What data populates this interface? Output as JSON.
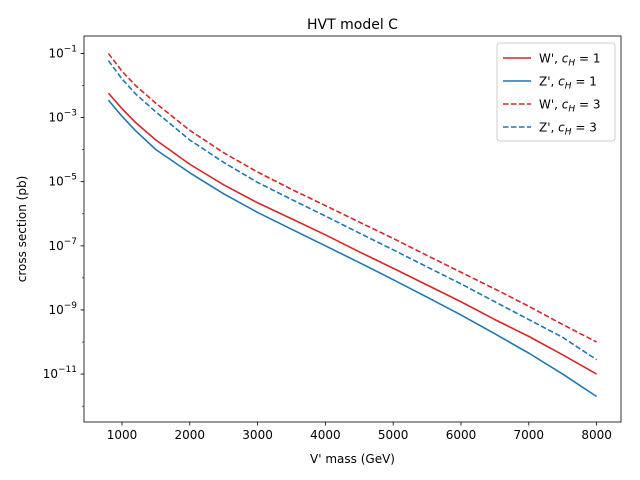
{
  "chart_data": {
    "type": "line",
    "title": "HVT model C",
    "xlabel": "V' mass (GeV)",
    "ylabel": "cross section (pb)",
    "xlim": [
      440,
      8360
    ],
    "ylim": [
      3.2e-13,
      0.35
    ],
    "yscale": "log",
    "grid": false,
    "legend_position": "top-right",
    "x_ticks": [
      1000,
      2000,
      3000,
      4000,
      5000,
      6000,
      7000,
      8000
    ],
    "x_tick_labels": [
      "1000",
      "2000",
      "3000",
      "4000",
      "5000",
      "6000",
      "7000",
      "8000"
    ],
    "y_ticks": [
      1e-11,
      1e-09,
      1e-07,
      1e-05,
      0.001,
      0.1
    ],
    "y_tick_exponents": [
      "−11",
      "−9",
      "−7",
      "−5",
      "−3",
      "−1"
    ],
    "y_tick_base": "10",
    "series": [
      {
        "name": "W', c_H = 1",
        "legend_prefix": "W', ",
        "legend_var": "c",
        "legend_sub": "H",
        "legend_eq": " = 1",
        "color": "#d62728",
        "dash": "solid",
        "x": [
          800,
          1000,
          1200,
          1500,
          2000,
          2500,
          3000,
          3500,
          4000,
          4500,
          5000,
          5500,
          6000,
          6500,
          7000,
          7500,
          8000
        ],
        "y": [
          0.0058,
          0.0019,
          0.0007,
          0.0002,
          3.5e-05,
          8e-06,
          2.2e-06,
          7e-07,
          2.2e-07,
          6.5e-08,
          2e-08,
          6e-09,
          1.8e-09,
          5e-10,
          1.5e-10,
          4e-11,
          1e-11
        ]
      },
      {
        "name": "Z', c_H = 1",
        "legend_prefix": "Z', ",
        "legend_var": "c",
        "legend_sub": "H",
        "legend_eq": " = 1",
        "color": "#1f77b4",
        "dash": "solid",
        "x": [
          800,
          1000,
          1200,
          1500,
          2000,
          2500,
          3000,
          3500,
          4000,
          4500,
          5000,
          5500,
          6000,
          6500,
          7000,
          7500,
          8000
        ],
        "y": [
          0.0035,
          0.0011,
          0.00039,
          0.0001,
          1.9e-05,
          4.2e-06,
          1.1e-06,
          3.3e-07,
          1e-07,
          3e-08,
          8.8e-09,
          2.5e-09,
          7e-10,
          1.8e-10,
          4.5e-11,
          1e-11,
          2e-12
        ]
      },
      {
        "name": "W', c_H = 3",
        "legend_prefix": "W', ",
        "legend_var": "c",
        "legend_sub": "H",
        "legend_eq": " = 3",
        "color": "#d62728",
        "dash": "dashed",
        "x": [
          800,
          1000,
          1200,
          1500,
          2000,
          2500,
          3000,
          3500,
          4000,
          4500,
          5000,
          5500,
          6000,
          6500,
          7000,
          7500,
          8000
        ],
        "y": [
          0.1,
          0.028,
          0.01,
          0.0028,
          0.0004,
          8e-05,
          2e-05,
          5.8e-06,
          1.8e-06,
          5.5e-07,
          1.7e-07,
          5e-08,
          1.5e-08,
          4.5e-09,
          1.3e-09,
          3.5e-10,
          1e-10
        ]
      },
      {
        "name": "Z', c_H = 3",
        "legend_prefix": "Z', ",
        "legend_var": "c",
        "legend_sub": "H",
        "legend_eq": " = 3",
        "color": "#1f77b4",
        "dash": "dashed",
        "x": [
          800,
          1000,
          1200,
          1500,
          2000,
          2500,
          3000,
          3500,
          4000,
          4500,
          5000,
          5500,
          6000,
          6500,
          7000,
          7500,
          8000
        ],
        "y": [
          0.06,
          0.016,
          0.0055,
          0.0015,
          0.0002,
          4e-05,
          9.5e-06,
          2.8e-06,
          8.5e-07,
          2.5e-07,
          7.5e-08,
          2.2e-08,
          6.5e-09,
          1.8e-09,
          5e-10,
          1.4e-10,
          2.8e-11
        ]
      }
    ]
  }
}
